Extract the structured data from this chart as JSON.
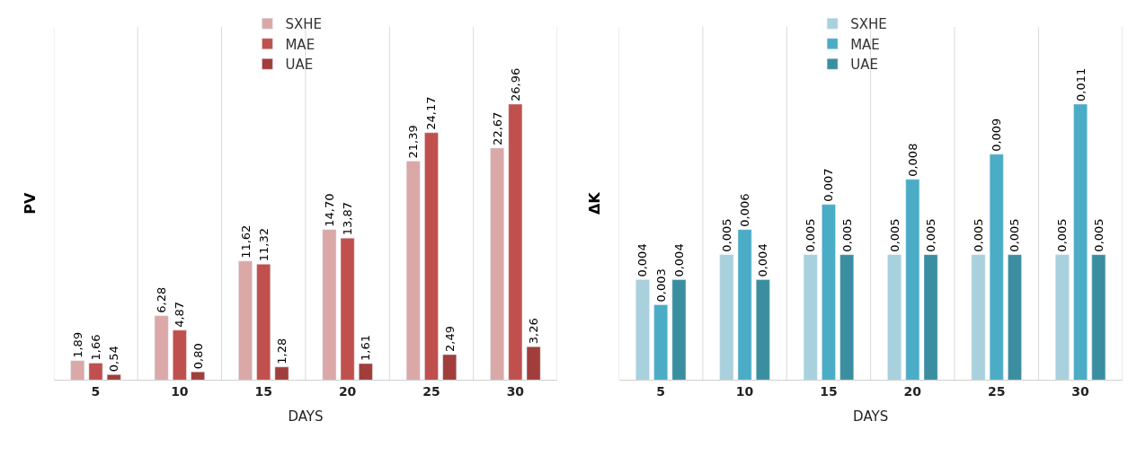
{
  "chart_data": [
    {
      "type": "bar",
      "xlabel": "DAYS",
      "ylabel": "PV",
      "categories": [
        "5",
        "10",
        "15",
        "20",
        "25",
        "30"
      ],
      "legend": "top",
      "tick_labels": "x",
      "series": [
        {
          "name": "SXHE",
          "color": "#d9a8a7",
          "values": [
            1.89,
            6.28,
            11.62,
            14.7,
            21.39,
            22.67
          ],
          "value_labels": [
            "1,89",
            "6,28",
            "11,62",
            "14,70",
            "21,39",
            "22,67"
          ]
        },
        {
          "name": "MAE",
          "color": "#c0504d",
          "values": [
            1.66,
            4.87,
            11.32,
            13.87,
            24.17,
            26.96
          ],
          "value_labels": [
            "1,66",
            "4,87",
            "11,32",
            "13,87",
            "24,17",
            "26,96"
          ]
        },
        {
          "name": "UAE",
          "color": "#a13e3c",
          "values": [
            0.54,
            0.8,
            1.28,
            1.61,
            2.49,
            3.26
          ],
          "value_labels": [
            "0,54",
            "0,80",
            "1,28",
            "1,61",
            "2,49",
            "3,26"
          ]
        }
      ]
    },
    {
      "type": "bar",
      "xlabel": "DAYS",
      "ylabel": "ΔK",
      "categories": [
        "5",
        "10",
        "15",
        "20",
        "25",
        "30"
      ],
      "legend": "top",
      "tick_labels": "x",
      "series": [
        {
          "name": "SXHE",
          "color": "#a8d1dd",
          "values": [
            0.004,
            0.005,
            0.005,
            0.005,
            0.005,
            0.005
          ],
          "value_labels": [
            "0,004",
            "0,005",
            "0,005",
            "0,005",
            "0,005",
            "0,005"
          ]
        },
        {
          "name": "MAE",
          "color": "#4bacc6",
          "values": [
            0.003,
            0.006,
            0.007,
            0.008,
            0.009,
            0.011
          ],
          "value_labels": [
            "0,003",
            "0,006",
            "0,007",
            "0,008",
            "0,009",
            "0,011"
          ]
        },
        {
          "name": "UAE",
          "color": "#3a8e9f",
          "values": [
            0.004,
            0.004,
            0.005,
            0.005,
            0.005,
            0.005
          ],
          "value_labels": [
            "0,004",
            "0,004",
            "0,005",
            "0,005",
            "0,005",
            "0,005"
          ]
        }
      ]
    }
  ]
}
